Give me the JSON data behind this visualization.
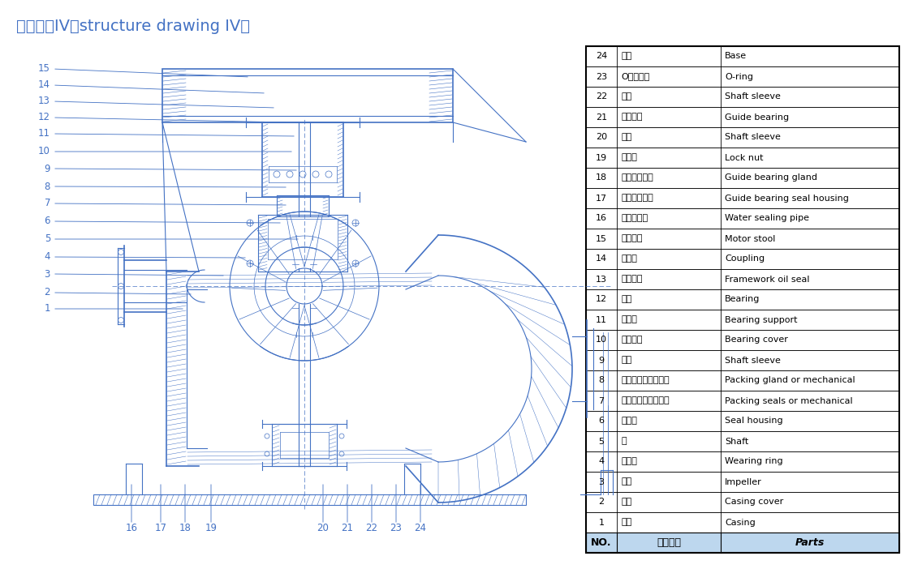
{
  "title": "结构形式IV（structure drawing IV）",
  "title_color": "#4472C4",
  "title_fontsize": 14,
  "bg_color": "#ffffff",
  "table_data": [
    {
      "no": "24",
      "cn": "底座",
      "en": "Base"
    },
    {
      "no": "23",
      "cn": "O型密封圈",
      "en": "O-ring"
    },
    {
      "no": "22",
      "cn": "轴套",
      "en": "Shaft sleeve"
    },
    {
      "no": "21",
      "cn": "水导轴承",
      "en": "Guide bearing"
    },
    {
      "no": "20",
      "cn": "轴套",
      "en": "Shaft sleeve"
    },
    {
      "no": "19",
      "cn": "圆螺母",
      "en": "Lock nut"
    },
    {
      "no": "18",
      "cn": "水导轴承压盖",
      "en": "Guide bearing gland"
    },
    {
      "no": "17",
      "cn": "导轴承密封体",
      "en": "Guide bearing seal housing"
    },
    {
      "no": "16",
      "cn": "水封管部件",
      "en": "Water sealing pipe"
    },
    {
      "no": "15",
      "cn": "电机支座",
      "en": "Motor stool"
    },
    {
      "no": "14",
      "cn": "联轴器",
      "en": "Coupling"
    },
    {
      "no": "13",
      "cn": "骨架油封",
      "en": "Framework oil seal"
    },
    {
      "no": "12",
      "cn": "轴承",
      "en": "Bearing"
    },
    {
      "no": "11",
      "cn": "轴承体",
      "en": "Bearing support"
    },
    {
      "no": "10",
      "cn": "轴承压盖",
      "en": "Bearing cover"
    },
    {
      "no": "9",
      "cn": "轴套",
      "en": "Shaft sleeve"
    },
    {
      "no": "8",
      "cn": "机封压盖或填料压盖",
      "en": "Packing gland or mechanical"
    },
    {
      "no": "7",
      "cn": "机械密封或填料密封",
      "en": "Packing seals or mechanical"
    },
    {
      "no": "6",
      "cn": "密封体",
      "en": "Seal housing"
    },
    {
      "no": "5",
      "cn": "轴",
      "en": "Shaft"
    },
    {
      "no": "4",
      "cn": "密封环",
      "en": "Wearing ring"
    },
    {
      "no": "3",
      "cn": "叶轮",
      "en": "Impeller"
    },
    {
      "no": "2",
      "cn": "泵盖",
      "en": "Casing cover"
    },
    {
      "no": "1",
      "cn": "泵体",
      "en": "Casing"
    }
  ],
  "header": {
    "no": "NO.",
    "cn": "零件名称",
    "en": "Parts"
  },
  "table_bg_header": "#BDD7EE",
  "table_border_color": "#000000",
  "label_color": "#4472C4",
  "line_color": "#4472C4",
  "draw_color": "#4472C4",
  "hatch_color": "#4472C4"
}
